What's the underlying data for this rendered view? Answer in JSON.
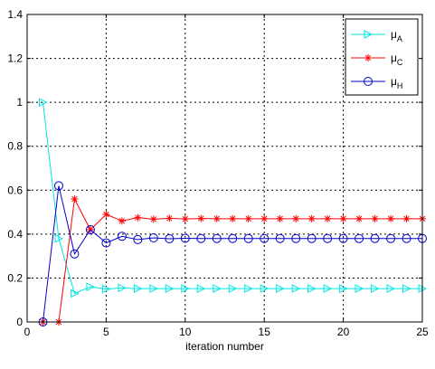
{
  "chart_data": {
    "type": "line",
    "xlabel": "iteration number",
    "ylabel": "",
    "title": "",
    "xlim": [
      0,
      25
    ],
    "ylim": [
      0,
      1.4
    ],
    "xticks": [
      0,
      5,
      10,
      15,
      20,
      25
    ],
    "yticks": [
      0,
      0.2,
      0.4,
      0.6,
      0.8,
      1,
      1.2,
      1.4
    ],
    "xtick_labels": [
      "0",
      "5",
      "10",
      "15",
      "20",
      "25"
    ],
    "ytick_labels": [
      "0",
      "0.2",
      "0.4",
      "0.6",
      "0.8",
      "1",
      "1.2",
      "1.4"
    ],
    "grid": true,
    "legend_position": "top-right",
    "x": [
      1,
      2,
      3,
      4,
      5,
      6,
      7,
      8,
      9,
      10,
      11,
      12,
      13,
      14,
      15,
      16,
      17,
      18,
      19,
      20,
      21,
      22,
      23,
      24,
      25
    ],
    "series": [
      {
        "name": "μA",
        "name_base": "μ",
        "name_sub": "A",
        "color": "#00e5e5",
        "marker": "triangle-right",
        "values": [
          1.0,
          0.38,
          0.13,
          0.16,
          0.15,
          0.155,
          0.152,
          0.152,
          0.152,
          0.152,
          0.152,
          0.152,
          0.152,
          0.152,
          0.152,
          0.152,
          0.152,
          0.152,
          0.152,
          0.152,
          0.152,
          0.152,
          0.152,
          0.152,
          0.152
        ]
      },
      {
        "name": "μC",
        "name_base": "μ",
        "name_sub": "C",
        "color": "#ff0000",
        "marker": "asterisk",
        "values": [
          0,
          0,
          0.56,
          0.42,
          0.49,
          0.46,
          0.475,
          0.468,
          0.472,
          0.469,
          0.471,
          0.47,
          0.47,
          0.47,
          0.47,
          0.47,
          0.47,
          0.47,
          0.47,
          0.47,
          0.47,
          0.47,
          0.47,
          0.47,
          0.47
        ]
      },
      {
        "name": "μH",
        "name_base": "μ",
        "name_sub": "H",
        "color": "#0000cc",
        "marker": "circle",
        "values": [
          0,
          0.62,
          0.31,
          0.42,
          0.36,
          0.39,
          0.375,
          0.383,
          0.379,
          0.381,
          0.38,
          0.38,
          0.38,
          0.38,
          0.38,
          0.38,
          0.38,
          0.38,
          0.38,
          0.38,
          0.38,
          0.38,
          0.38,
          0.38,
          0.38
        ]
      }
    ]
  }
}
